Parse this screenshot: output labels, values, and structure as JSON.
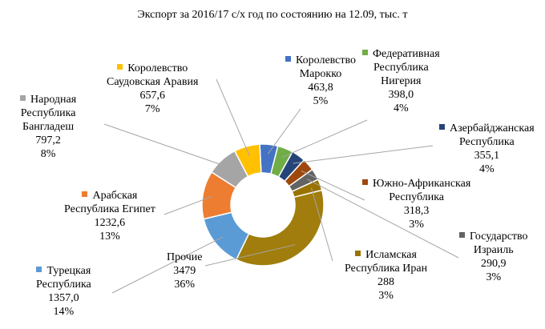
{
  "chart_data": {
    "type": "pie",
    "donut": true,
    "title": "Экспорт за 2016/17 с/х год по состоянию на 12.09, тыс. т",
    "slices": [
      {
        "name": "Королевство Марокко",
        "name_lines": [
          "Королевство",
          "Марокко"
        ],
        "value": 463.8,
        "value_label": "463,8",
        "percent_label": "5%",
        "color": "#4472c4"
      },
      {
        "name": "Федеративная Республика Нигерия",
        "name_lines": [
          "Федеративная",
          "Республика",
          "Нигерия"
        ],
        "value": 398.0,
        "value_label": "398,0",
        "percent_label": "4%",
        "color": "#70ad47"
      },
      {
        "name": "Азербайджанская Республика",
        "name_lines": [
          "Азербайджанская",
          "Республика"
        ],
        "value": 355.1,
        "value_label": "355,1",
        "percent_label": "4%",
        "color": "#264478"
      },
      {
        "name": "Южно-Африканская Республика",
        "name_lines": [
          "Южно-Африканская",
          "Республика"
        ],
        "value": 318.3,
        "value_label": "318,3",
        "percent_label": "3%",
        "color": "#9e480e"
      },
      {
        "name": "Государство Израиль",
        "name_lines": [
          "Государство",
          "Израиль"
        ],
        "value": 290.9,
        "value_label": "290,9",
        "percent_label": "3%",
        "color": "#636363"
      },
      {
        "name": "Исламская Республика Иран",
        "name_lines": [
          "Исламская",
          "Республика Иран"
        ],
        "value": 288,
        "value_label": "288",
        "percent_label": "3%",
        "color": "#997300"
      },
      {
        "name": "Прочие",
        "name_lines": [
          "Прочие"
        ],
        "value": 3479,
        "value_label": "3479",
        "percent_label": "36%",
        "color": "#a07d0c"
      },
      {
        "name": "Турецкая Республика",
        "name_lines": [
          "Турецкая",
          "Республика"
        ],
        "value": 1357.0,
        "value_label": "1357,0",
        "percent_label": "14%",
        "color": "#5b9bd5"
      },
      {
        "name": "Арабская Республика Египет",
        "name_lines": [
          "Арабская",
          "Республика Египет"
        ],
        "value": 1232.6,
        "value_label": "1232,6",
        "percent_label": "13%",
        "color": "#ed7d31"
      },
      {
        "name": "Народная Республика Бангладеш",
        "name_lines": [
          "Народная",
          "Республика",
          "Бангладеш"
        ],
        "value": 797.2,
        "value_label": "797,2",
        "percent_label": "8%",
        "color": "#a5a5a5"
      },
      {
        "name": "Королевство Саудовская Аравия",
        "name_lines": [
          "Королевство",
          "Саудовская Аравия"
        ],
        "value": 657.6,
        "value_label": "657,6",
        "percent_label": "7%",
        "color": "#ffc000"
      }
    ]
  }
}
